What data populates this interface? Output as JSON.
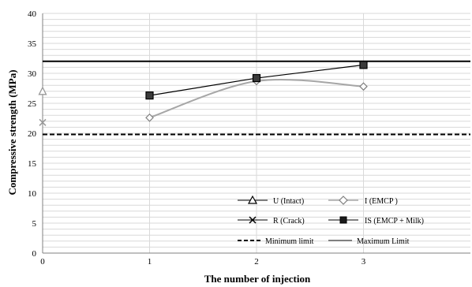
{
  "chart_data": {
    "type": "line",
    "title": "",
    "xlabel": "The number of injection",
    "ylabel": "Compressive strength (MPa)",
    "xlim": [
      0,
      4
    ],
    "ylim": [
      0,
      40
    ],
    "x_ticks": [
      "0",
      "1",
      "2",
      "3"
    ],
    "y_ticks": [
      "0",
      "5",
      "10",
      "15",
      "20",
      "25",
      "30",
      "35",
      "40"
    ],
    "grid": true,
    "legend_position": "bottom-right",
    "series": [
      {
        "name": "U (Intact)",
        "marker": "triangle",
        "color": "#999999",
        "x": [
          0
        ],
        "y": [
          27.0
        ]
      },
      {
        "name": "I (EMCP )",
        "marker": "diamond",
        "color": "#a6a6a6",
        "x": [
          1,
          2,
          3
        ],
        "y": [
          22.6,
          28.7,
          27.8
        ]
      },
      {
        "name": "R (Crack)",
        "marker": "cross",
        "color": "#999999",
        "x": [
          0
        ],
        "y": [
          21.8
        ]
      },
      {
        "name": "IS (EMCP + Milk)",
        "marker": "square",
        "color": "#000000",
        "x": [
          1,
          2,
          3
        ],
        "y": [
          26.3,
          29.2,
          31.4
        ]
      }
    ],
    "reference_lines": [
      {
        "name": "Minimum limit",
        "y": 19.8,
        "style": "dashed",
        "color": "#000000"
      },
      {
        "name": "Maximum Limit",
        "y": 32.0,
        "style": "solid",
        "color": "#000000"
      }
    ]
  }
}
